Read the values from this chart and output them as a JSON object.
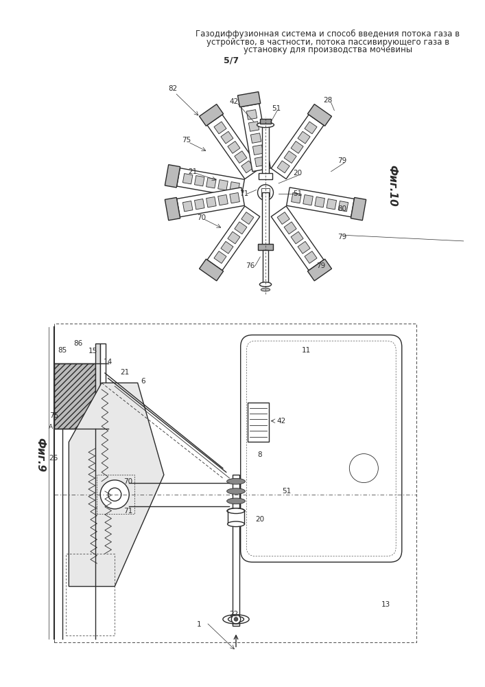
{
  "title_line1": "Газодиффузионная система и способ введения потока газа в",
  "title_line2": "устройство, в частности, потока пассивирующего газа в",
  "title_line3": "установку для производства мочевины",
  "page_label": "5/7",
  "fig9_label": "Фиг.9",
  "fig10_label": "Фиг.10",
  "bg_color": "#ffffff",
  "line_color": "#2a2a2a",
  "title_fontsize": 8.5,
  "label_fontsize": 8,
  "fig_label_fontsize": 11
}
